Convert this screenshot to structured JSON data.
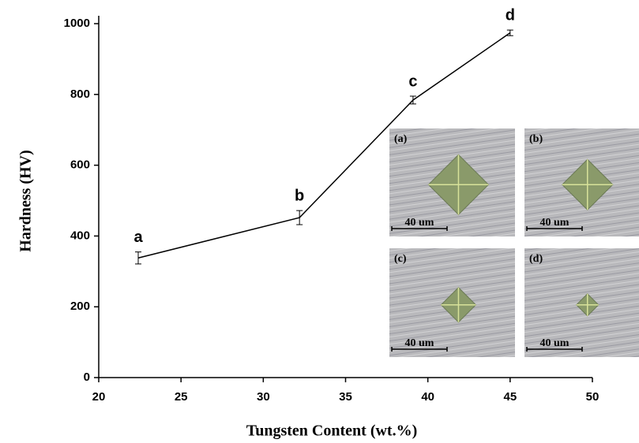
{
  "chart_data": {
    "type": "line",
    "xlabel": "Tungsten Content (wt.%)",
    "ylabel": "Hardness (HV)",
    "x": [
      22.4,
      32.2,
      39.1,
      45
    ],
    "series": [
      {
        "color": "#000000",
        "values": [
          338,
          452,
          784,
          974
        ],
        "errors": [
          17,
          20,
          11,
          8
        ],
        "point_labels": [
          "a",
          "b",
          "c",
          "d"
        ]
      }
    ],
    "xlim": [
      20,
      50
    ],
    "xticks": [
      20,
      25,
      30,
      35,
      40,
      45,
      50
    ],
    "ylim": [
      0,
      1000
    ],
    "yticks": [
      0,
      200,
      400,
      600,
      800,
      1000
    ],
    "insets": [
      {
        "label": "(a)",
        "scale": "40 um"
      },
      {
        "label": "(b)",
        "scale": "40 um"
      },
      {
        "label": "(c)",
        "scale": "40 um"
      },
      {
        "label": "(d)",
        "scale": "40 um"
      }
    ]
  }
}
